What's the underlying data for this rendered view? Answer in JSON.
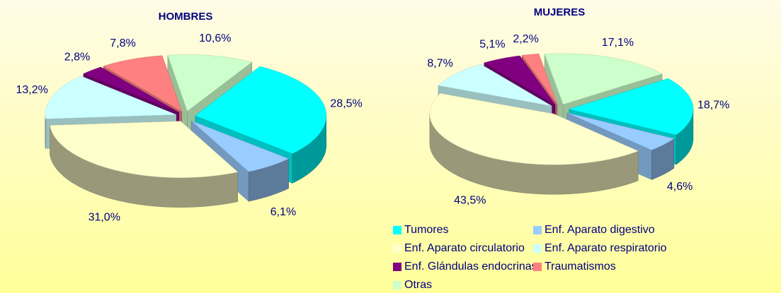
{
  "chart_data": [
    {
      "type": "pie",
      "title": "HOMBRES",
      "categories": [
        "Tumores",
        "Enf.  Aparato digestivo",
        "Enf. Aparato circulatorio",
        "Enf. Aparato respiratorio",
        "Enf. Glándulas endocrinas",
        "Traumatismos",
        "Otras"
      ],
      "values": [
        28.5,
        6.1,
        31.0,
        13.2,
        2.8,
        7.8,
        10.6
      ],
      "value_labels": [
        "28,5%",
        "6,1%",
        "31,0%",
        "13,2%",
        "2,8%",
        "7,8%",
        "10,6%"
      ],
      "colors": [
        "#00ffff",
        "#99ccff",
        "#ffffcc",
        "#ccffff",
        "#800080",
        "#ff8080",
        "#ccffcc"
      ]
    },
    {
      "type": "pie",
      "title": "MUJERES",
      "categories": [
        "Tumores",
        "Enf.  Aparato digestivo",
        "Enf. Aparato circulatorio",
        "Enf. Aparato respiratorio",
        "Enf. Glándulas endocrinas",
        "Traumatismos",
        "Otras"
      ],
      "values": [
        18.7,
        4.6,
        43.5,
        8.7,
        5.1,
        2.2,
        17.1
      ],
      "value_labels": [
        "18,7%",
        "4,6%",
        "43,5%",
        "8,7%",
        "5,1%",
        "2,2%",
        "17,1%"
      ],
      "colors": [
        "#00ffff",
        "#99ccff",
        "#ffffcc",
        "#ccffff",
        "#800080",
        "#ff8080",
        "#ccffcc"
      ]
    }
  ]
}
